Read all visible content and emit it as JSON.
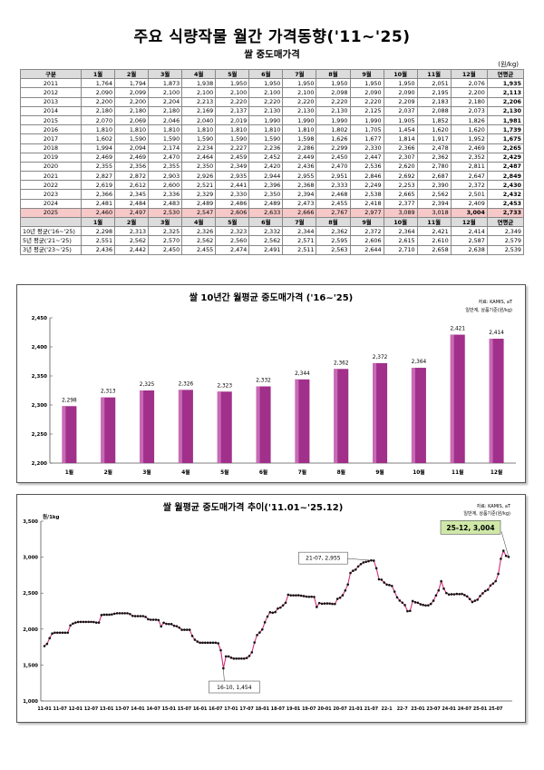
{
  "title": "주요 식량작물 월간 가격동향('11~'25)",
  "subtitle": "쌀 중도매가격",
  "unit": "(원/kg)",
  "table": {
    "headers": [
      "구분",
      "1월",
      "2월",
      "3월",
      "4월",
      "5월",
      "6월",
      "7월",
      "8월",
      "9월",
      "10월",
      "11월",
      "12월",
      "연평균"
    ],
    "rows": [
      {
        "label": "2011",
        "values": [
          "1,764",
          "1,794",
          "1,873",
          "1,938",
          "1,950",
          "1,950",
          "1,950",
          "1,950",
          "1,950",
          "1,950",
          "2,051",
          "2,076",
          "1,935"
        ]
      },
      {
        "label": "2012",
        "values": [
          "2,090",
          "2,099",
          "2,100",
          "2,100",
          "2,100",
          "2,100",
          "2,100",
          "2,098",
          "2,090",
          "2,090",
          "2,195",
          "2,200",
          "2,113"
        ]
      },
      {
        "label": "2013",
        "values": [
          "2,200",
          "2,200",
          "2,204",
          "2,213",
          "2,220",
          "2,220",
          "2,220",
          "2,220",
          "2,220",
          "2,209",
          "2,183",
          "2,180",
          "2,206"
        ]
      },
      {
        "label": "2014",
        "values": [
          "2,180",
          "2,180",
          "2,180",
          "2,169",
          "2,137",
          "2,130",
          "2,130",
          "2,130",
          "2,125",
          "2,037",
          "2,088",
          "2,073",
          "2,130"
        ]
      },
      {
        "label": "2015",
        "values": [
          "2,070",
          "2,069",
          "2,046",
          "2,040",
          "2,019",
          "1,990",
          "1,990",
          "1,990",
          "1,990",
          "1,905",
          "1,852",
          "1,826",
          "1,981"
        ]
      },
      {
        "label": "2016",
        "values": [
          "1,810",
          "1,810",
          "1,810",
          "1,810",
          "1,810",
          "1,810",
          "1,810",
          "1,802",
          "1,705",
          "1,454",
          "1,620",
          "1,620",
          "1,739"
        ]
      },
      {
        "label": "2017",
        "values": [
          "1,602",
          "1,590",
          "1,590",
          "1,590",
          "1,590",
          "1,590",
          "1,598",
          "1,626",
          "1,677",
          "1,814",
          "1,917",
          "1,952",
          "1,675"
        ]
      },
      {
        "label": "2018",
        "values": [
          "1,994",
          "2,094",
          "2,174",
          "2,234",
          "2,227",
          "2,236",
          "2,286",
          "2,299",
          "2,330",
          "2,366",
          "2,478",
          "2,469",
          "2,265"
        ]
      },
      {
        "label": "2019",
        "values": [
          "2,469",
          "2,469",
          "2,470",
          "2,464",
          "2,459",
          "2,452",
          "2,449",
          "2,450",
          "2,447",
          "2,307",
          "2,362",
          "2,352",
          "2,429"
        ]
      },
      {
        "label": "2020",
        "values": [
          "2,355",
          "2,356",
          "2,355",
          "2,350",
          "2,349",
          "2,420",
          "2,436",
          "2,470",
          "2,536",
          "2,620",
          "2,780",
          "2,811",
          "2,487"
        ]
      },
      {
        "label": "2021",
        "values": [
          "2,827",
          "2,872",
          "2,903",
          "2,926",
          "2,935",
          "2,944",
          "2,955",
          "2,951",
          "2,846",
          "2,692",
          "2,687",
          "2,647",
          "2,849"
        ]
      },
      {
        "label": "2022",
        "values": [
          "2,619",
          "2,612",
          "2,600",
          "2,521",
          "2,441",
          "2,396",
          "2,368",
          "2,333",
          "2,249",
          "2,253",
          "2,390",
          "2,372",
          "2,430"
        ]
      },
      {
        "label": "2023",
        "values": [
          "2,366",
          "2,345",
          "2,336",
          "2,329",
          "2,330",
          "2,350",
          "2,394",
          "2,468",
          "2,538",
          "2,665",
          "2,562",
          "2,501",
          "2,432"
        ]
      },
      {
        "label": "2024",
        "values": [
          "2,481",
          "2,484",
          "2,483",
          "2,489",
          "2,486",
          "2,489",
          "2,473",
          "2,455",
          "2,418",
          "2,377",
          "2,394",
          "2,409",
          "2,453"
        ]
      },
      {
        "label": "2025",
        "values": [
          "2,460",
          "2,497",
          "2,530",
          "2,547",
          "2,606",
          "2,633",
          "2,666",
          "2,767",
          "2,977",
          "3,089",
          "3,018",
          "3,004",
          "2,733"
        ]
      }
    ],
    "headers2": [
      "",
      "1월",
      "2월",
      "3월",
      "4월",
      "5월",
      "6월",
      "7월",
      "8월",
      "9월",
      "10월",
      "11월",
      "12월",
      "연평균"
    ],
    "avg_rows": [
      {
        "label": "10년 평균('16~'25)",
        "values": [
          "2,298",
          "2,313",
          "2,325",
          "2,326",
          "2,323",
          "2,332",
          "2,344",
          "2,362",
          "2,372",
          "2,364",
          "2,421",
          "2,414",
          "2,349"
        ]
      },
      {
        "label": "5년 평균('21~'25)",
        "values": [
          "2,551",
          "2,562",
          "2,570",
          "2,562",
          "2,560",
          "2,562",
          "2,571",
          "2,595",
          "2,606",
          "2,615",
          "2,610",
          "2,587",
          "2,579"
        ]
      },
      {
        "label": "3년 평균('23~'25)",
        "values": [
          "2,436",
          "2,442",
          "2,450",
          "2,455",
          "2,474",
          "2,491",
          "2,511",
          "2,563",
          "2,644",
          "2,710",
          "2,658",
          "2,638",
          "2,539"
        ]
      }
    ]
  },
  "chart_data": [
    {
      "type": "bar",
      "title": "쌀 10년간 월평균 중도매가격 ('16~'25)",
      "source": "자료: KAMIS, aT",
      "note": "일반계, 상품기준(원/kg)",
      "categories": [
        "1월",
        "2월",
        "3월",
        "4월",
        "5월",
        "6월",
        "7월",
        "8월",
        "9월",
        "10월",
        "11월",
        "12월"
      ],
      "values": [
        2298,
        2313,
        2325,
        2326,
        2323,
        2332,
        2344,
        2362,
        2372,
        2364,
        2421,
        2414
      ],
      "value_labels": [
        "2,298",
        "2,313",
        "2,325",
        "2,326",
        "2,323",
        "2,332",
        "2,344",
        "2,362",
        "2,372",
        "2,364",
        "2,421",
        "2,414"
      ],
      "ylim": [
        2200,
        2450
      ],
      "yticks": [
        "2,200",
        "2,250",
        "2,300",
        "2,350",
        "2,400",
        "2,450"
      ],
      "color": "#a0308a"
    },
    {
      "type": "line",
      "title": "쌀 월평균 중도매가격 추이('11.01~'25.12)",
      "source": "자료: KAMIS, aT",
      "note": "일반계, 상품기준(원/kg)",
      "ylabel": "원/1kg",
      "ylim": [
        1000,
        3500
      ],
      "yticks": [
        "1,000",
        "1,500",
        "2,000",
        "2,500",
        "3,000",
        "3,500"
      ],
      "xticks": [
        "11-01",
        "11-07",
        "12-01",
        "12-07",
        "13-01",
        "13-07",
        "14-01",
        "14-07",
        "15-01",
        "15-07",
        "16-01",
        "16-07",
        "17-01",
        "17-07",
        "18-01",
        "18-07",
        "19-01",
        "19-07",
        "20-01",
        "20-07",
        "21-01",
        "21-07",
        "22-1",
        "22-7",
        "23-01",
        "23-07",
        "24-01",
        "24-07",
        "25-01",
        "25-07"
      ],
      "annotations": [
        {
          "label": "21-07,  2,955"
        },
        {
          "label": "16-10,  1,454"
        },
        {
          "label": "25-12,  3,004"
        }
      ],
      "color": "#d0307a"
    }
  ]
}
